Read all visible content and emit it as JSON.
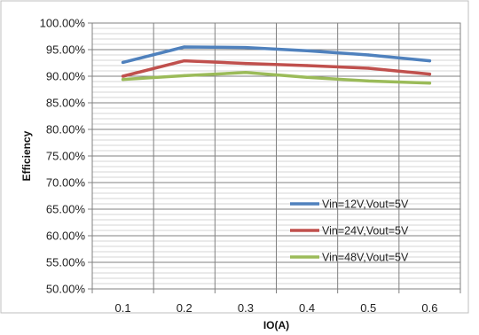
{
  "chart_data": {
    "type": "line",
    "title": "",
    "xlabel": "IO(A)",
    "ylabel": "Efficiency",
    "x": [
      0.1,
      0.2,
      0.3,
      0.4,
      0.5,
      0.6
    ],
    "x_tick_labels": [
      "0.1",
      "0.2",
      "0.3",
      "0.4",
      "0.5",
      "0.6"
    ],
    "xlim": [
      0.05,
      0.65
    ],
    "ylim": [
      50,
      100
    ],
    "y_ticks": [
      50,
      55,
      60,
      65,
      70,
      75,
      80,
      85,
      90,
      95,
      100
    ],
    "y_tick_labels": [
      "50.00%",
      "55.00%",
      "60.00%",
      "65.00%",
      "70.00%",
      "75.00%",
      "80.00%",
      "85.00%",
      "90.00%",
      "95.00%",
      "100.00%"
    ],
    "y_minor_step": 1,
    "grid": true,
    "legend_position": "bottom-right",
    "series": [
      {
        "name": "Vin=12V,Vout=5V",
        "color": "#4f81bd",
        "values": [
          92.6,
          95.5,
          95.4,
          94.8,
          94.0,
          92.9
        ]
      },
      {
        "name": "Vin=24V,Vout=5V",
        "color": "#c0504d",
        "values": [
          90.0,
          92.9,
          92.4,
          92.0,
          91.5,
          90.4
        ]
      },
      {
        "name": "Vin=48V,Vout=5V",
        "color": "#9bbb59",
        "values": [
          89.4,
          90.1,
          90.7,
          89.8,
          89.1,
          88.7
        ]
      }
    ]
  }
}
